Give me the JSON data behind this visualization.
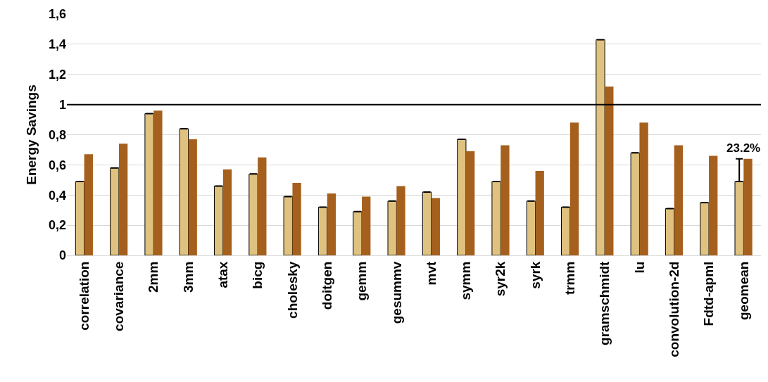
{
  "chart_data": {
    "type": "bar",
    "ylabel": "Energy Savings",
    "categories": [
      "correlation",
      "covariance",
      "2mm",
      "3mm",
      "atax",
      "bicg",
      "cholesky",
      "doitgen",
      "gemm",
      "gesummv",
      "mvt",
      "symm",
      "syr2k",
      "syrk",
      "trmm",
      "gramschmidt",
      "lu",
      "convolution-2d",
      "Fdtd-apml",
      "geomean"
    ],
    "series": [
      {
        "color": "#e0c280",
        "values": [
          0.49,
          0.58,
          0.94,
          0.84,
          0.46,
          0.54,
          0.39,
          0.32,
          0.29,
          0.36,
          0.42,
          0.77,
          0.49,
          0.36,
          0.32,
          1.43,
          0.68,
          0.31,
          0.35,
          0.49
        ],
        "errors": [
          null,
          null,
          null,
          null,
          null,
          null,
          null,
          null,
          null,
          null,
          null,
          null,
          null,
          null,
          null,
          null,
          null,
          null,
          null,
          [
            0.49,
            0.64
          ]
        ]
      },
      {
        "color": "#a5601e",
        "values": [
          0.67,
          0.74,
          0.96,
          0.77,
          0.57,
          0.65,
          0.48,
          0.41,
          0.39,
          0.46,
          0.38,
          0.69,
          0.73,
          0.56,
          0.88,
          1.12,
          0.88,
          0.73,
          0.66,
          0.64
        ]
      }
    ],
    "ylim": [
      0,
      1.6
    ],
    "yticks": [
      0,
      {
        "value": 0.2,
        "label": "0,2"
      },
      {
        "value": 0.4,
        "label": "0,4"
      },
      {
        "value": 0.6,
        "label": "0,6"
      },
      {
        "value": 0.8,
        "label": "0,8"
      },
      1,
      {
        "value": 1.2,
        "label": "1,2"
      },
      {
        "value": 1.4,
        "label": "1,4"
      },
      {
        "value": 1.6,
        "label": "1,6"
      }
    ],
    "grid": "y",
    "ref_lines": [
      {
        "axis": "y",
        "value": 1,
        "color": "#000000"
      }
    ],
    "annotations": [
      {
        "text": "23.2%",
        "x": "geomean",
        "y": 0.64
      }
    ]
  }
}
